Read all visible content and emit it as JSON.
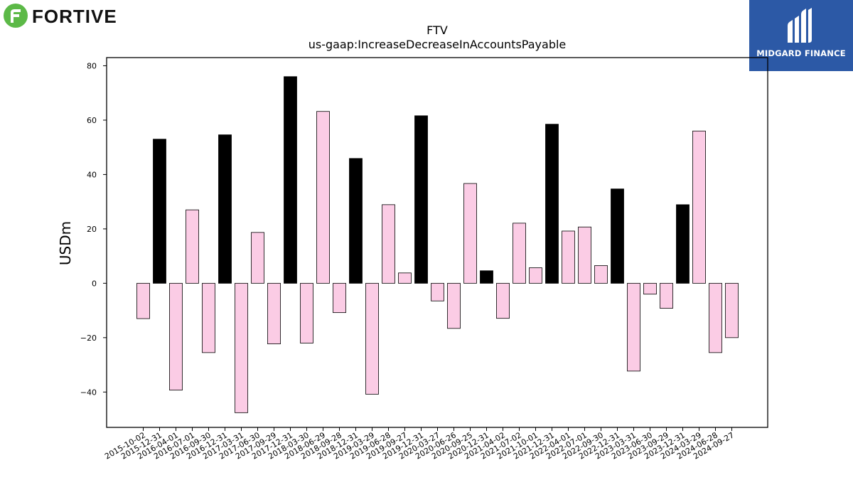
{
  "brand": {
    "left_logo_text": "FORTIVE",
    "right_logo_text": "MIDGARD FINANCE",
    "left_logo_color": "#5cb947",
    "right_logo_bg": "#2c59a6"
  },
  "chart_data": {
    "type": "bar",
    "title": "FTV",
    "subtitle": "us-gaap:IncreaseDecreaseInAccountsPayable",
    "xlabel": "",
    "ylabel": "USDm",
    "ylim": [
      -53,
      83
    ],
    "yticks": [
      -40,
      -20,
      0,
      20,
      40,
      60,
      80
    ],
    "grid": false,
    "colors": {
      "quarter": "#fbcce5",
      "year_end": "#000000",
      "edge": "#000000"
    },
    "categories": [
      "2015-10-02",
      "2015-12-31",
      "2016-04-01",
      "2016-07-01",
      "2016-09-30",
      "2016-12-31",
      "2017-03-31",
      "2017-06-30",
      "2017-09-29",
      "2017-12-31",
      "2018-03-30",
      "2018-06-29",
      "2018-09-28",
      "2018-12-31",
      "2019-03-29",
      "2019-06-28",
      "2019-09-27",
      "2019-12-31",
      "2020-03-27",
      "2020-06-26",
      "2020-09-25",
      "2020-12-31",
      "2021-04-02",
      "2021-07-02",
      "2021-10-01",
      "2021-12-31",
      "2022-04-01",
      "2022-07-01",
      "2022-09-30",
      "2022-12-31",
      "2023-03-31",
      "2023-06-30",
      "2023-09-29",
      "2023-12-31",
      "2024-03-29",
      "2024-06-28",
      "2024-09-27"
    ],
    "values": [
      -13,
      53,
      -39.3,
      27,
      -25.5,
      54.6,
      -47.6,
      18.7,
      -22.3,
      76,
      -22,
      63.2,
      -10.8,
      45.9,
      -40.8,
      28.9,
      3.8,
      61.6,
      -6.5,
      -16.6,
      36.7,
      4.6,
      -12.9,
      22.1,
      5.7,
      58.5,
      19.2,
      20.7,
      6.5,
      34.7,
      -32.3,
      -4,
      -9.2,
      28.9,
      56,
      -25.5,
      -20
    ],
    "year_end": [
      false,
      true,
      false,
      false,
      false,
      true,
      false,
      false,
      false,
      true,
      false,
      false,
      false,
      true,
      false,
      false,
      false,
      true,
      false,
      false,
      false,
      true,
      false,
      false,
      false,
      true,
      false,
      false,
      false,
      true,
      false,
      false,
      false,
      true,
      false,
      false,
      false
    ]
  }
}
